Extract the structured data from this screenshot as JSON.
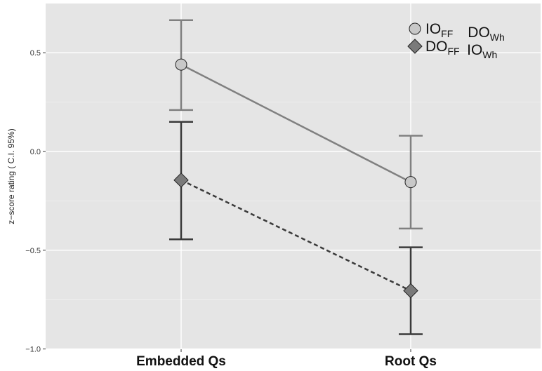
{
  "chart_data": {
    "type": "line",
    "categories": [
      "Embedded Qs",
      "Root Qs"
    ],
    "ylabel": "z−score rating ( C.I. 95%)",
    "xlabel": "",
    "ylim": [
      -1.0,
      0.75
    ],
    "yticks": [
      -1.0,
      -0.5,
      0.0,
      0.5
    ],
    "ytick_labels": [
      "−1.0",
      "−0.5",
      "0.0",
      "0.5"
    ],
    "grid": true,
    "legend_position": "top-right",
    "series": [
      {
        "legend": {
          "a_main": "IO",
          "a_sub": "FF",
          "b_main": "DO",
          "b_sub": "Wh"
        },
        "marker": "circle",
        "line_style": "solid",
        "line_color": "#808080",
        "marker_fill": "#c8c8c8",
        "values": [
          0.44,
          -0.155
        ],
        "ci_low": [
          0.21,
          -0.39
        ],
        "ci_high": [
          0.665,
          0.08
        ]
      },
      {
        "legend": {
          "a_main": "DO",
          "a_sub": "FF",
          "b_main": "IO",
          "b_sub": "Wh"
        },
        "marker": "diamond",
        "line_style": "dashed",
        "line_color": "#3a3a3a",
        "marker_fill": "#7a7a7a",
        "values": [
          -0.145,
          -0.705
        ],
        "ci_low": [
          -0.445,
          -0.925
        ],
        "ci_high": [
          0.15,
          -0.485
        ]
      }
    ]
  }
}
